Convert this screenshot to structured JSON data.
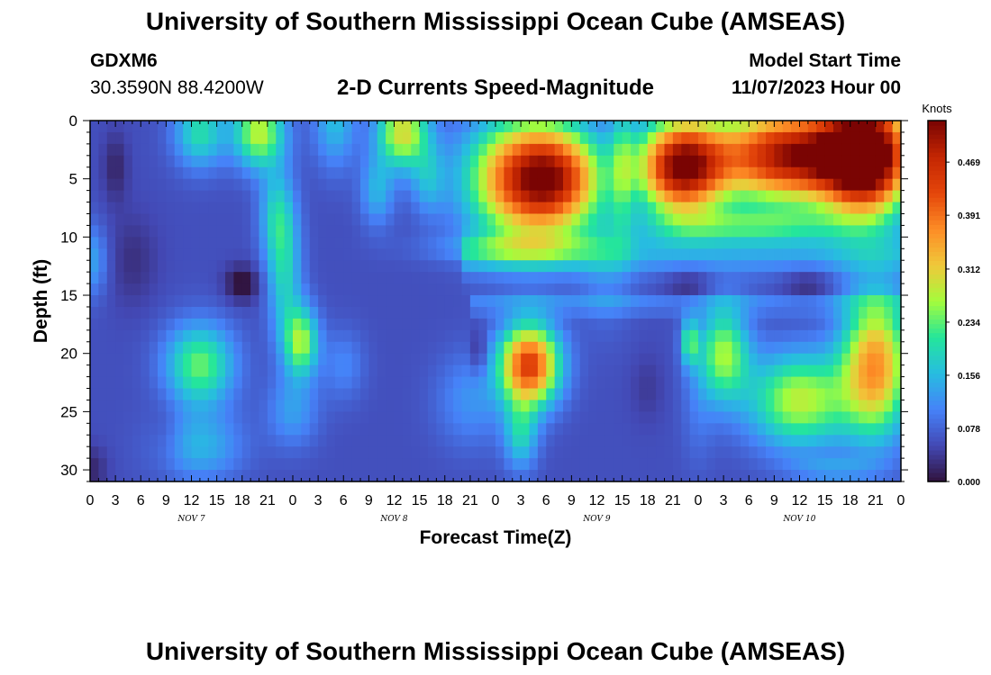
{
  "header": {
    "title": "University of Southern Mississippi Ocean Cube (AMSEAS)",
    "station": "GDXM6",
    "coordinates": "30.3590N  88.4200W",
    "subtitle": "2-D Currents Speed-Magnitude",
    "model_start_label": "Model Start Time",
    "model_start_value": "11/07/2023 Hour 00"
  },
  "footer": {
    "title": "University of Southern Mississippi Ocean Cube (AMSEAS)"
  },
  "chart_data": {
    "type": "heatmap",
    "title": "2-D Currents Speed-Magnitude",
    "xlabel": "Forecast Time(Z)",
    "ylabel": "Depth (ft)",
    "x_tick_labels": [
      "0",
      "3",
      "6",
      "9",
      "12",
      "15",
      "18",
      "21",
      "0",
      "3",
      "6",
      "9",
      "12",
      "15",
      "18",
      "21",
      "0",
      "3",
      "6",
      "9",
      "12",
      "15",
      "18",
      "21",
      "0",
      "3",
      "6",
      "9",
      "12",
      "15",
      "18",
      "21",
      "0"
    ],
    "x_hours": [
      0,
      3,
      6,
      9,
      12,
      15,
      18,
      21,
      24,
      27,
      30,
      33,
      36,
      39,
      42,
      45,
      48,
      51,
      54,
      57,
      60,
      63,
      66,
      69,
      72,
      75,
      78,
      81,
      84,
      87,
      90,
      93,
      96
    ],
    "date_labels": [
      {
        "label": "NOV 7",
        "hour": 12
      },
      {
        "label": "NOV 8",
        "hour": 36
      },
      {
        "label": "NOV 9",
        "hour": 60
      },
      {
        "label": "NOV 10",
        "hour": 84
      }
    ],
    "y_ticks": [
      0,
      5,
      10,
      15,
      20,
      25,
      30
    ],
    "xlim": [
      0,
      96
    ],
    "ylim": [
      0,
      31
    ],
    "y_inverted": true,
    "colorbar": {
      "unit": "Knots",
      "ticks": [
        "0.000",
        "0.078",
        "0.156",
        "0.234",
        "0.312",
        "0.391",
        "0.469"
      ],
      "range": [
        0,
        0.53
      ]
    },
    "field": {
      "base": 0.06,
      "blobs": [
        {
          "t": 3,
          "d": 4,
          "st": 1.5,
          "sd": 3,
          "v": -0.04
        },
        {
          "t": 0,
          "d": 30,
          "st": 2,
          "sd": 2,
          "v": -0.04
        },
        {
          "t": 0,
          "d": 12,
          "st": 2,
          "sd": 3,
          "v": 0.08
        },
        {
          "t": 13,
          "d": 1,
          "st": 3,
          "sd": 3,
          "v": 0.14
        },
        {
          "t": 20,
          "d": 1,
          "st": 3,
          "sd": 3,
          "v": 0.22
        },
        {
          "t": 22,
          "d": 8,
          "st": 2,
          "sd": 4,
          "v": 0.1
        },
        {
          "t": 23,
          "d": 13,
          "st": 2,
          "sd": 6,
          "v": 0.12
        },
        {
          "t": 25,
          "d": 19,
          "st": 2,
          "sd": 3,
          "v": 0.2
        },
        {
          "t": 24,
          "d": 25,
          "st": 3,
          "sd": 3,
          "v": 0.07
        },
        {
          "t": 18,
          "d": 14,
          "st": 2,
          "sd": 1.5,
          "v": -0.07
        },
        {
          "t": 13,
          "d": 21,
          "st": 4,
          "sd": 3.5,
          "v": 0.18
        },
        {
          "t": 13,
          "d": 28,
          "st": 5,
          "sd": 3,
          "v": 0.09
        },
        {
          "t": 29,
          "d": 0,
          "st": 2.5,
          "sd": 4,
          "v": 0.1
        },
        {
          "t": 37,
          "d": 1,
          "st": 3,
          "sd": 3,
          "v": 0.24
        },
        {
          "t": 34,
          "d": 6,
          "st": 2,
          "sd": 3,
          "v": 0.09
        },
        {
          "t": 40,
          "d": 5,
          "st": 2,
          "sd": 3,
          "v": 0.08
        },
        {
          "t": 30,
          "d": 21,
          "st": 2.5,
          "sd": 3,
          "v": 0.05
        },
        {
          "t": 45,
          "d": 24,
          "st": 4,
          "sd": 4,
          "v": 0.06
        },
        {
          "t": 52,
          "d": 5,
          "st": 7,
          "sd": 5,
          "v": 0.4
        },
        {
          "t": 56,
          "d": 5,
          "st": 5,
          "sd": 4,
          "v": 0.15
        },
        {
          "t": 51,
          "d": 11,
          "st": 10,
          "sd": 1.3,
          "v": 0.08
        },
        {
          "t": 52,
          "d": 21,
          "st": 3.5,
          "sd": 3.5,
          "v": 0.38
        },
        {
          "t": 51,
          "d": 27,
          "st": 2,
          "sd": 3,
          "v": 0.12
        },
        {
          "t": 46,
          "d": 20,
          "st": 1,
          "sd": 2,
          "v": -0.05
        },
        {
          "t": 61,
          "d": 13,
          "st": 3,
          "sd": 5,
          "v": 0.04
        },
        {
          "t": 63,
          "d": 4,
          "st": 1.5,
          "sd": 6,
          "v": 0.1
        },
        {
          "t": 70,
          "d": 4,
          "st": 5,
          "sd": 4,
          "v": 0.45
        },
        {
          "t": 83,
          "d": 3,
          "st": 9,
          "sd": 4,
          "v": 0.45
        },
        {
          "t": 92,
          "d": 3,
          "st": 5,
          "sd": 5,
          "v": 0.5
        },
        {
          "t": 78,
          "d": 9,
          "st": 12,
          "sd": 1.5,
          "v": 0.13
        },
        {
          "t": 84,
          "d": 24,
          "st": 6,
          "sd": 4,
          "v": 0.22
        },
        {
          "t": 93,
          "d": 21,
          "st": 4,
          "sd": 6,
          "v": 0.3
        },
        {
          "t": 75,
          "d": 20,
          "st": 3,
          "sd": 4,
          "v": 0.2
        },
        {
          "t": 71,
          "d": 19,
          "st": 1,
          "sd": 2,
          "v": 0.15
        },
        {
          "t": 88,
          "d": 30,
          "st": 5,
          "sd": 1,
          "v": 0.06
        },
        {
          "t": 72,
          "d": 25,
          "st": 2,
          "sd": 5,
          "v": 0.03
        },
        {
          "t": 66,
          "d": 23,
          "st": 2,
          "sd": 3,
          "v": -0.02
        },
        {
          "t": 71,
          "d": 14,
          "st": 3,
          "sd": 1.5,
          "v": -0.04
        },
        {
          "t": 85,
          "d": 14,
          "st": 3,
          "sd": 1.5,
          "v": -0.04
        },
        {
          "t": 9,
          "d": 27,
          "st": 2,
          "sd": 3,
          "v": -0.02
        },
        {
          "t": 5,
          "d": 12,
          "st": 3,
          "sd": 4,
          "v": -0.03
        }
      ],
      "bands": [
        {
          "d": 11.5,
          "sd": 1.8,
          "v": 0.07,
          "t0": 44,
          "t1": 96
        },
        {
          "d": 15.8,
          "sd": 0.8,
          "v": 0.05,
          "t0": 45,
          "t1": 96
        }
      ]
    }
  }
}
